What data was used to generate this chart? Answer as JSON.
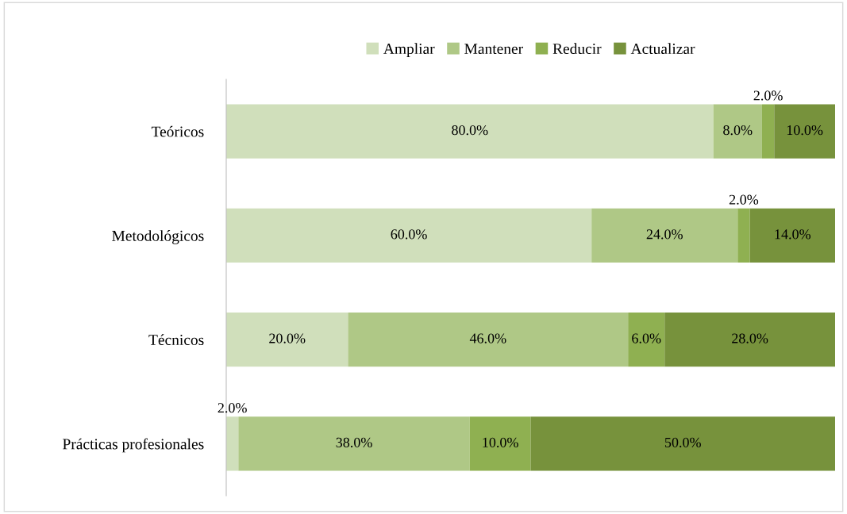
{
  "chart_data": {
    "type": "bar",
    "orientation": "horizontal",
    "stacked": true,
    "categories": [
      "Teóricos",
      "Metodológicos",
      "Técnicos",
      "Prácticas profesionales"
    ],
    "series": [
      {
        "name": "Ampliar",
        "color": "#d0dfbb",
        "values": [
          80,
          60,
          20,
          2
        ],
        "value_labels": [
          "80.0%",
          "60.0%",
          "20.0%",
          "2.0%"
        ]
      },
      {
        "name": "Mantener",
        "color": "#afc886",
        "values": [
          8,
          24,
          46,
          38
        ],
        "value_labels": [
          "8.0%",
          "24.0%",
          "46.0%",
          "38.0%"
        ]
      },
      {
        "name": "Reducir",
        "color": "#8fb051",
        "values": [
          2,
          2,
          6,
          10
        ],
        "value_labels": [
          "2.0%",
          "2.0%",
          "6.0%",
          "10.0%"
        ]
      },
      {
        "name": "Actualizar",
        "color": "#77923c",
        "values": [
          10,
          14,
          28,
          50
        ],
        "value_labels": [
          "10.0%",
          "14.0%",
          "28.0%",
          "50.0%"
        ]
      }
    ],
    "xlim": [
      0,
      100
    ],
    "tick_labels": "y",
    "grid": false,
    "legend": "top"
  }
}
